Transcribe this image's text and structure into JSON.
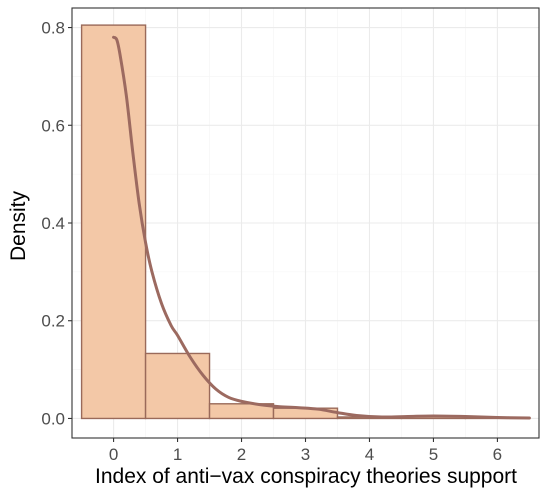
{
  "chart_data": {
    "type": "bar",
    "subtype": "histogram-with-density",
    "xlabel": "Index of anti−vax conspiracy theories support",
    "ylabel": "Density",
    "xlim": [
      -0.65,
      6.65
    ],
    "ylim": [
      -0.04,
      0.84
    ],
    "x_ticks": [
      0,
      1,
      2,
      3,
      4,
      5,
      6
    ],
    "x_tick_labels": [
      "0",
      "1",
      "2",
      "3",
      "4",
      "5",
      "6"
    ],
    "y_ticks": [
      0.0,
      0.2,
      0.4,
      0.6,
      0.8
    ],
    "y_tick_labels": [
      "0.0",
      "0.2",
      "0.4",
      "0.6",
      "0.8"
    ],
    "grid": true,
    "bins": [
      {
        "x0": -0.5,
        "x1": 0.5,
        "density": 0.805
      },
      {
        "x0": 0.5,
        "x1": 1.5,
        "density": 0.133
      },
      {
        "x0": 1.5,
        "x1": 2.5,
        "density": 0.03
      },
      {
        "x0": 2.5,
        "x1": 3.5,
        "density": 0.021
      },
      {
        "x0": 3.5,
        "x1": 4.5,
        "density": 0.003
      },
      {
        "x0": 4.5,
        "x1": 5.5,
        "density": 0.004
      },
      {
        "x0": 5.5,
        "x1": 6.5,
        "density": 0.001
      }
    ],
    "density_curve": {
      "x": [
        0.0,
        0.05,
        0.1,
        0.2,
        0.3,
        0.4,
        0.5,
        0.6,
        0.75,
        0.9,
        1.0,
        1.2,
        1.4,
        1.6,
        1.8,
        2.0,
        2.3,
        2.6,
        2.9,
        3.2,
        3.5,
        3.8,
        4.2,
        4.6,
        5.0,
        5.5,
        6.0,
        6.5
      ],
      "y": [
        0.78,
        0.775,
        0.745,
        0.66,
        0.545,
        0.44,
        0.36,
        0.3,
        0.235,
        0.19,
        0.17,
        0.125,
        0.088,
        0.06,
        0.043,
        0.035,
        0.028,
        0.024,
        0.022,
        0.019,
        0.012,
        0.006,
        0.003,
        0.004,
        0.005,
        0.004,
        0.002,
        0.001
      ]
    },
    "colors": {
      "bar_fill": "#f3c8a7",
      "bar_stroke": "#9a6a5a",
      "curve": "#9c6a60"
    }
  }
}
